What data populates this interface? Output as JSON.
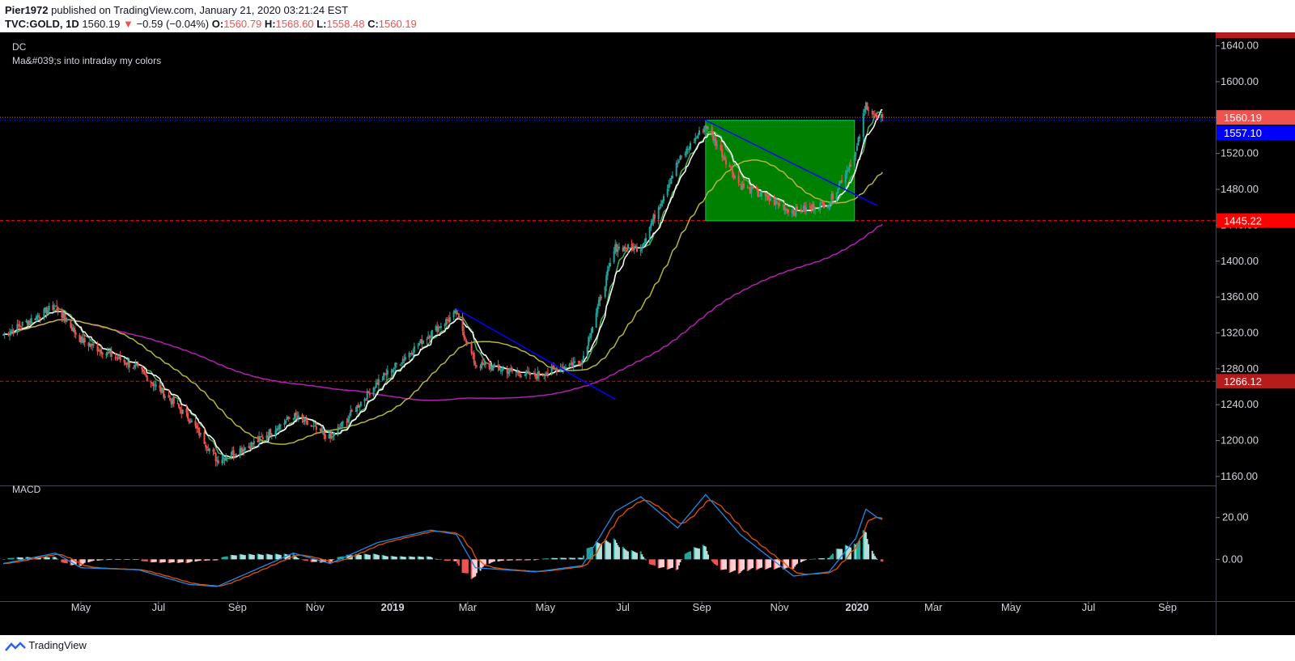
{
  "header": {
    "author": "Pier1972",
    "published_text": "published on TradingView.com, January 21, 2020 03:21:24 EST",
    "symbol": "TVC:GOLD, 1D",
    "last": "1560.19",
    "change_arrow": "▼",
    "change": "−0.59 (−0.04%)",
    "o_label": "O:",
    "o_value": "1560.79",
    "h_label": "H:",
    "h_value": "1568.60",
    "l_label": "L:",
    "l_value": "1558.48",
    "c_label": "C:",
    "c_value": "1560.19"
  },
  "indicators": {
    "dc_label": "DC",
    "ma_label": "Ma&#039;s into intraday my colors",
    "macd_label": "MACD"
  },
  "footer": {
    "brand": "TradingView"
  },
  "colors": {
    "background": "#000000",
    "up": "#26a69a",
    "down": "#ef5350",
    "box": "#008000",
    "trendline": "#0000ff",
    "ma_green": "#4caf50",
    "ma_yellow": "#b5b53a",
    "ma_magenta": "#b31fb0",
    "donchian": "#ffffff",
    "macd_line": "#1e88e5",
    "signal_line": "#e65100"
  },
  "chart_data": {
    "type": "candlestick",
    "symbol": "TVC:GOLD",
    "interval": "1D",
    "x_ticks": [
      {
        "label": "May",
        "date": "2018-05-01"
      },
      {
        "label": "Jul",
        "date": "2018-07-01"
      },
      {
        "label": "Sep",
        "date": "2018-09-01"
      },
      {
        "label": "Nov",
        "date": "2018-11-01"
      },
      {
        "label": "2019",
        "date": "2019-01-01",
        "bold": true
      },
      {
        "label": "Mar",
        "date": "2019-03-01"
      },
      {
        "label": "May",
        "date": "2019-05-01"
      },
      {
        "label": "Jul",
        "date": "2019-07-01"
      },
      {
        "label": "Sep",
        "date": "2019-09-01"
      },
      {
        "label": "Nov",
        "date": "2019-11-01"
      },
      {
        "label": "2020",
        "date": "2020-01-01",
        "bold": true
      },
      {
        "label": "Mar",
        "date": "2020-03-01"
      },
      {
        "label": "May",
        "date": "2020-05-01"
      },
      {
        "label": "Jul",
        "date": "2020-07-01"
      },
      {
        "label": "Sep",
        "date": "2020-09-01"
      }
    ],
    "price_axis": {
      "ticks": [
        "1160.00",
        "1200.00",
        "1240.00",
        "1280.00",
        "1320.00",
        "1360.00",
        "1400.00",
        "1440.00",
        "1480.00",
        "1520.00",
        "1560.00",
        "1600.00",
        "1640.00"
      ],
      "ylim": [
        1150,
        1655
      ]
    },
    "price_labels": [
      {
        "text": "1560.19",
        "value": 1560.19,
        "color": "#ef5350"
      },
      {
        "text": "1557.10",
        "value": 1557.1,
        "color": "#0000ff"
      },
      {
        "text": "1445.22",
        "value": 1445.22,
        "color": "#ff0000"
      },
      {
        "text": "1266.12",
        "value": 1266.12,
        "color": "#b71c1c"
      }
    ],
    "horizontal_lines": [
      {
        "value": 1560.19,
        "color": "#ef5350",
        "style": "dotted"
      },
      {
        "value": 1557.1,
        "color": "#0000ff",
        "style": "dotted"
      },
      {
        "value": 1445.22,
        "color": "#ff0000",
        "style": "dashed"
      },
      {
        "value": 1266.12,
        "color": "#ff0000",
        "style": "dashed"
      }
    ],
    "box": {
      "x1": "2019-09-04",
      "x2": "2019-12-30",
      "y1": 1445,
      "y2": 1557
    },
    "trendlines": [
      {
        "from": {
          "date": "2019-02-20",
          "price": 1347
        },
        "to": {
          "date": "2019-06-25",
          "price": 1246
        }
      },
      {
        "from": {
          "date": "2019-09-04",
          "price": 1557
        },
        "to": {
          "date": "2020-01-17",
          "price": 1462
        }
      }
    ],
    "close_anchors": [
      {
        "date": "2018-03-01",
        "value": 1318
      },
      {
        "date": "2018-04-11",
        "value": 1350
      },
      {
        "date": "2018-05-01",
        "value": 1312
      },
      {
        "date": "2018-06-15",
        "value": 1280
      },
      {
        "date": "2018-07-25",
        "value": 1225
      },
      {
        "date": "2018-08-16",
        "value": 1178
      },
      {
        "date": "2018-09-15",
        "value": 1198
      },
      {
        "date": "2018-10-15",
        "value": 1228
      },
      {
        "date": "2018-11-13",
        "value": 1202
      },
      {
        "date": "2018-12-20",
        "value": 1265
      },
      {
        "date": "2019-01-31",
        "value": 1320
      },
      {
        "date": "2019-02-20",
        "value": 1342
      },
      {
        "date": "2019-03-07",
        "value": 1285
      },
      {
        "date": "2019-04-23",
        "value": 1272
      },
      {
        "date": "2019-05-30",
        "value": 1290
      },
      {
        "date": "2019-06-25",
        "value": 1415
      },
      {
        "date": "2019-07-15",
        "value": 1415
      },
      {
        "date": "2019-08-13",
        "value": 1510
      },
      {
        "date": "2019-09-04",
        "value": 1552
      },
      {
        "date": "2019-10-01",
        "value": 1485
      },
      {
        "date": "2019-11-12",
        "value": 1455
      },
      {
        "date": "2019-12-10",
        "value": 1465
      },
      {
        "date": "2019-12-31",
        "value": 1520
      },
      {
        "date": "2020-01-08",
        "value": 1575
      },
      {
        "date": "2020-01-17",
        "value": 1558
      },
      {
        "date": "2020-01-21",
        "value": 1560.19
      }
    ],
    "macd": {
      "ticks": [
        "0.00",
        "20.00"
      ],
      "ylim": [
        -20,
        35
      ],
      "anchors": [
        {
          "date": "2018-03-01",
          "value": -2
        },
        {
          "date": "2018-04-11",
          "value": 3
        },
        {
          "date": "2018-05-01",
          "value": -4
        },
        {
          "date": "2018-06-15",
          "value": -5
        },
        {
          "date": "2018-07-25",
          "value": -12
        },
        {
          "date": "2018-08-16",
          "value": -13
        },
        {
          "date": "2018-09-15",
          "value": -5
        },
        {
          "date": "2018-10-15",
          "value": 3
        },
        {
          "date": "2018-11-13",
          "value": -2
        },
        {
          "date": "2018-12-20",
          "value": 8
        },
        {
          "date": "2019-01-31",
          "value": 14
        },
        {
          "date": "2019-02-20",
          "value": 12
        },
        {
          "date": "2019-03-07",
          "value": -4
        },
        {
          "date": "2019-04-23",
          "value": -6
        },
        {
          "date": "2019-05-30",
          "value": -3
        },
        {
          "date": "2019-06-25",
          "value": 23
        },
        {
          "date": "2019-07-15",
          "value": 30
        },
        {
          "date": "2019-08-13",
          "value": 15
        },
        {
          "date": "2019-09-04",
          "value": 31
        },
        {
          "date": "2019-10-01",
          "value": 12
        },
        {
          "date": "2019-11-12",
          "value": -8
        },
        {
          "date": "2019-12-10",
          "value": -6
        },
        {
          "date": "2019-12-31",
          "value": 10
        },
        {
          "date": "2020-01-08",
          "value": 24
        },
        {
          "date": "2020-01-17",
          "value": 20
        },
        {
          "date": "2020-01-21",
          "value": 19
        }
      ]
    }
  }
}
